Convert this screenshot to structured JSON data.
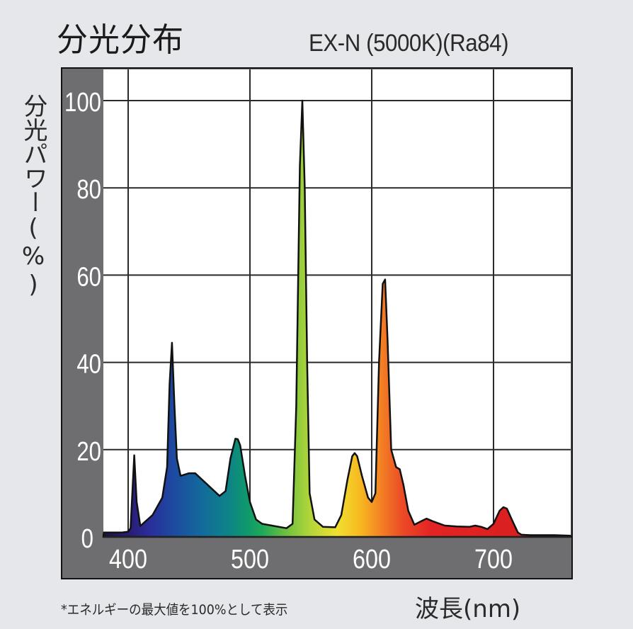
{
  "header": {
    "title": "分光分布",
    "subtitle": "EX-N (5000K)(Ra84)"
  },
  "axes": {
    "ylabel": "分光パワー(%)",
    "xlabel": "波長(nm)"
  },
  "footnote": "*エネルギーの最大値を100%として表示",
  "colors": {
    "background": "#e6e7eb",
    "axis_band": "#6e6e70",
    "plot_bg": "#ffffff",
    "grid": "#2a2a2a",
    "outline": "#111111"
  },
  "chart_data": {
    "type": "area",
    "title": "分光分布",
    "subtitle": "EX-N (5000K)(Ra84)",
    "xlabel": "波長(nm)",
    "ylabel": "分光パワー(%)",
    "note": "*エネルギーの最大値を100%として表示",
    "xlim": [
      380,
      763
    ],
    "ylim": [
      0,
      100
    ],
    "xticks": [
      400,
      500,
      600,
      700
    ],
    "yticks": [
      0,
      20,
      40,
      60,
      80,
      100
    ],
    "grid": true,
    "legend": null,
    "fill": "visible-spectrum gradient",
    "series": [
      {
        "name": "EX-N (5000K)",
        "x": [
          380,
          395,
          400,
          402,
          405,
          407,
          410,
          420,
          428,
          432,
          434,
          436,
          438,
          440,
          443,
          450,
          455,
          465,
          475,
          480,
          484,
          488,
          490,
          492,
          496,
          500,
          505,
          510,
          520,
          530,
          535,
          538,
          541,
          543,
          545,
          547,
          549,
          553,
          560,
          570,
          575,
          580,
          584,
          586,
          588,
          592,
          597,
          600,
          603,
          606,
          609,
          611,
          613,
          616,
          620,
          623,
          626,
          630,
          635,
          640,
          645,
          650,
          660,
          670,
          680,
          685,
          690,
          695,
          700,
          705,
          708,
          711,
          715,
          720,
          723,
          730,
          750,
          763
        ],
        "values": [
          1,
          1,
          1.2,
          2,
          18.7,
          8,
          2.5,
          5,
          9,
          16,
          35,
          44.5,
          30,
          18,
          14,
          14.6,
          14.6,
          12,
          9.4,
          10.5,
          18,
          22.5,
          22.4,
          21,
          14,
          8,
          4,
          3,
          2.5,
          2,
          3,
          30,
          85,
          100,
          80,
          40,
          10,
          4,
          2.3,
          2.2,
          5,
          13,
          18.5,
          19.2,
          18.5,
          14,
          9,
          8,
          10,
          40,
          58,
          59,
          45,
          20,
          16,
          15.5,
          12,
          6,
          2.8,
          3.5,
          4.2,
          3.6,
          2.6,
          2.4,
          2.3,
          2.6,
          2.3,
          1.8,
          3,
          6,
          6.8,
          6.5,
          4,
          1,
          0.5,
          0.4,
          0.4,
          0.3
        ]
      }
    ],
    "peaks": [
      {
        "nm": 405,
        "value": 18.7
      },
      {
        "nm": 436,
        "value": 44.5
      },
      {
        "nm": 490,
        "value": 22.5
      },
      {
        "nm": 545,
        "value": 100
      },
      {
        "nm": 586,
        "value": 19.2
      },
      {
        "nm": 611,
        "value": 59
      },
      {
        "nm": 710,
        "value": 6.8
      }
    ]
  }
}
